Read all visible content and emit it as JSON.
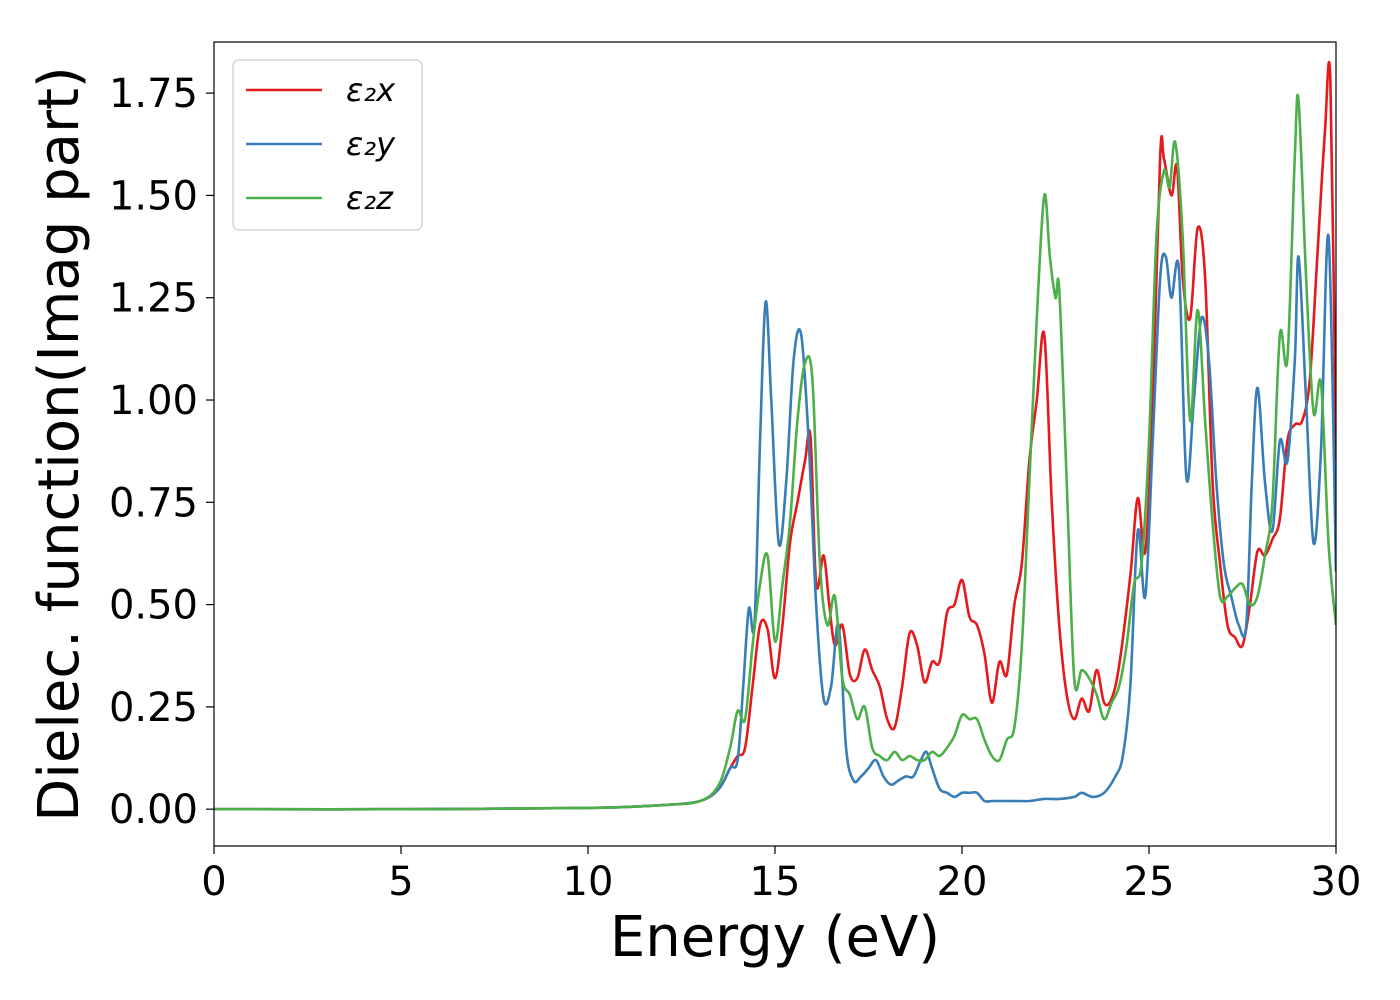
{
  "chart_data": {
    "type": "line",
    "xlabel": "Energy (eV)",
    "ylabel": "Dielec. function(Imag part)",
    "xlim": [
      0,
      30
    ],
    "ylim": [
      -0.09,
      1.875
    ],
    "xticks": [
      0,
      5,
      10,
      15,
      20,
      25,
      30
    ],
    "xtick_labels": [
      "0",
      "5",
      "10",
      "15",
      "20",
      "25",
      "30"
    ],
    "yticks": [
      0.0,
      0.25,
      0.5,
      0.75,
      1.0,
      1.25,
      1.5,
      1.75
    ],
    "ytick_labels": [
      "0.00",
      "0.25",
      "0.50",
      "0.75",
      "1.00",
      "1.25",
      "1.50",
      "1.75"
    ],
    "grid": false,
    "legend_position": "top-left",
    "series": [
      {
        "name": "ε₂x",
        "color": "#e41a1c",
        "x": [
          0,
          5,
          10,
          12,
          13,
          13.5,
          13.8,
          14.0,
          14.2,
          14.4,
          14.6,
          14.8,
          15.0,
          15.2,
          15.4,
          15.6,
          15.8,
          15.95,
          16.1,
          16.3,
          16.45,
          16.6,
          16.8,
          17.0,
          17.2,
          17.4,
          17.6,
          17.8,
          18.0,
          18.2,
          18.4,
          18.6,
          18.8,
          19.0,
          19.2,
          19.4,
          19.6,
          19.8,
          20.0,
          20.2,
          20.4,
          20.6,
          20.8,
          21.0,
          21.2,
          21.4,
          21.6,
          21.8,
          22.0,
          22.2,
          22.4,
          22.6,
          22.8,
          23.0,
          23.2,
          23.4,
          23.6,
          23.8,
          24.0,
          24.2,
          24.5,
          24.7,
          24.9,
          25.1,
          25.3,
          25.4,
          25.6,
          25.75,
          25.9,
          26.1,
          26.3,
          26.5,
          26.7,
          26.9,
          27.1,
          27.3,
          27.5,
          27.7,
          27.9,
          28.1,
          28.3,
          28.5,
          28.7,
          28.9,
          29.1,
          29.3,
          29.5,
          29.7,
          29.85,
          30.0
        ],
        "y": [
          0.0,
          0.0,
          0.003,
          0.01,
          0.02,
          0.05,
          0.1,
          0.13,
          0.15,
          0.3,
          0.45,
          0.44,
          0.32,
          0.45,
          0.65,
          0.75,
          0.85,
          0.91,
          0.55,
          0.62,
          0.5,
          0.4,
          0.45,
          0.33,
          0.32,
          0.39,
          0.34,
          0.3,
          0.22,
          0.2,
          0.3,
          0.43,
          0.4,
          0.31,
          0.36,
          0.36,
          0.48,
          0.5,
          0.56,
          0.47,
          0.45,
          0.38,
          0.26,
          0.36,
          0.33,
          0.5,
          0.6,
          0.85,
          1.0,
          1.16,
          0.75,
          0.45,
          0.28,
          0.22,
          0.27,
          0.24,
          0.34,
          0.26,
          0.27,
          0.35,
          0.57,
          0.76,
          0.63,
          1.0,
          1.6,
          1.59,
          1.5,
          1.57,
          1.3,
          1.2,
          1.42,
          1.3,
          0.8,
          0.6,
          0.45,
          0.42,
          0.4,
          0.5,
          0.63,
          0.62,
          0.66,
          0.71,
          0.9,
          0.94,
          0.95,
          1.05,
          1.35,
          1.65,
          1.78,
          0.85
        ]
      },
      {
        "name": "ε₂y",
        "color": "#377eb8",
        "x": [
          0,
          5,
          10,
          12,
          13,
          13.5,
          13.8,
          14.0,
          14.15,
          14.3,
          14.45,
          14.6,
          14.75,
          14.9,
          15.1,
          15.3,
          15.5,
          15.7,
          15.9,
          16.1,
          16.3,
          16.5,
          16.7,
          16.9,
          17.1,
          17.3,
          17.5,
          17.7,
          17.9,
          18.1,
          18.3,
          18.5,
          18.7,
          18.9,
          19.05,
          19.2,
          19.4,
          19.6,
          19.8,
          20.0,
          20.2,
          20.4,
          20.6,
          20.8,
          21.0,
          21.4,
          21.8,
          22.2,
          22.6,
          23.0,
          23.2,
          23.5,
          23.8,
          24.1,
          24.3,
          24.5,
          24.7,
          24.9,
          25.1,
          25.3,
          25.45,
          25.6,
          25.8,
          26.0,
          26.2,
          26.4,
          26.6,
          26.8,
          27.0,
          27.2,
          27.4,
          27.6,
          27.75,
          27.9,
          28.1,
          28.3,
          28.5,
          28.7,
          28.9,
          29.0,
          29.2,
          29.4,
          29.6,
          29.8,
          30.0
        ],
        "y": [
          0.0,
          0.0,
          0.003,
          0.01,
          0.02,
          0.05,
          0.1,
          0.12,
          0.3,
          0.49,
          0.45,
          0.9,
          1.24,
          1.0,
          0.65,
          0.8,
          1.1,
          1.16,
          0.9,
          0.5,
          0.27,
          0.3,
          0.45,
          0.15,
          0.07,
          0.08,
          0.1,
          0.12,
          0.08,
          0.06,
          0.07,
          0.08,
          0.08,
          0.12,
          0.14,
          0.1,
          0.05,
          0.04,
          0.03,
          0.04,
          0.04,
          0.04,
          0.02,
          0.02,
          0.02,
          0.02,
          0.02,
          0.025,
          0.025,
          0.03,
          0.04,
          0.03,
          0.04,
          0.08,
          0.13,
          0.3,
          0.68,
          0.52,
          0.9,
          1.3,
          1.35,
          1.25,
          1.32,
          0.81,
          1.0,
          1.2,
          1.1,
          0.8,
          0.6,
          0.52,
          0.45,
          0.45,
          0.8,
          1.03,
          0.8,
          0.68,
          0.9,
          0.85,
          1.1,
          1.35,
          1.0,
          0.65,
          0.88,
          1.4,
          0.58
        ]
      },
      {
        "name": "ε₂z",
        "color": "#4daf4a",
        "x": [
          0,
          5,
          10,
          12,
          13,
          13.5,
          13.8,
          14.0,
          14.2,
          14.4,
          14.6,
          14.8,
          15.0,
          15.2,
          15.4,
          15.6,
          15.8,
          16.0,
          16.2,
          16.4,
          16.6,
          16.8,
          17.0,
          17.2,
          17.4,
          17.6,
          17.8,
          18.0,
          18.2,
          18.4,
          18.6,
          18.8,
          19.0,
          19.2,
          19.4,
          19.6,
          19.8,
          20.0,
          20.2,
          20.4,
          20.6,
          20.8,
          21.0,
          21.2,
          21.4,
          21.6,
          21.8,
          22.0,
          22.2,
          22.35,
          22.5,
          22.6,
          22.8,
          23.0,
          23.2,
          23.4,
          23.6,
          23.8,
          24.0,
          24.2,
          24.4,
          24.6,
          24.8,
          25.0,
          25.2,
          25.4,
          25.55,
          25.7,
          25.9,
          26.1,
          26.3,
          26.5,
          26.7,
          26.9,
          27.1,
          27.3,
          27.5,
          27.7,
          27.9,
          28.1,
          28.3,
          28.5,
          28.7,
          28.9,
          29.0,
          29.2,
          29.4,
          29.6,
          29.8,
          30.0
        ],
        "y": [
          0.0,
          0.0,
          0.003,
          0.01,
          0.02,
          0.06,
          0.15,
          0.24,
          0.22,
          0.4,
          0.55,
          0.62,
          0.41,
          0.55,
          0.7,
          0.95,
          1.09,
          1.05,
          0.6,
          0.45,
          0.52,
          0.32,
          0.28,
          0.22,
          0.25,
          0.15,
          0.13,
          0.12,
          0.14,
          0.12,
          0.13,
          0.12,
          0.12,
          0.14,
          0.13,
          0.15,
          0.18,
          0.23,
          0.22,
          0.22,
          0.17,
          0.13,
          0.12,
          0.17,
          0.2,
          0.4,
          0.8,
          1.2,
          1.5,
          1.35,
          1.25,
          1.27,
          0.8,
          0.32,
          0.34,
          0.32,
          0.28,
          0.22,
          0.26,
          0.3,
          0.4,
          0.55,
          0.6,
          0.9,
          1.4,
          1.56,
          1.52,
          1.63,
          1.4,
          0.95,
          1.22,
          0.95,
          0.7,
          0.52,
          0.52,
          0.54,
          0.55,
          0.5,
          0.52,
          0.62,
          0.75,
          1.16,
          1.1,
          1.6,
          1.73,
          1.3,
          0.97,
          1.04,
          0.65,
          0.45
        ]
      }
    ]
  }
}
